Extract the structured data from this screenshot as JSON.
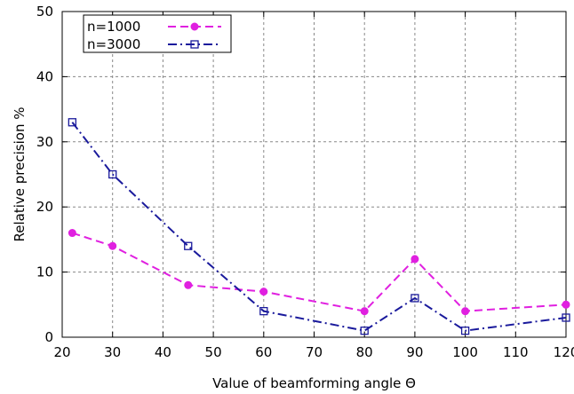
{
  "chart_data": {
    "type": "line",
    "title": "",
    "xlabel": "Value of beamforming angle Θ",
    "ylabel": "Relative precision %",
    "xlim": [
      20,
      120
    ],
    "ylim": [
      0,
      50
    ],
    "xticks": [
      20,
      30,
      40,
      50,
      60,
      70,
      80,
      90,
      100,
      110,
      120
    ],
    "yticks": [
      0,
      10,
      20,
      30,
      40,
      50
    ],
    "grid": true,
    "legend_position": "top-left",
    "series": [
      {
        "name": "n=1000",
        "color": "#e020e0",
        "marker": "filled-circle",
        "line_style": "dashed",
        "x": [
          22,
          30,
          45,
          60,
          80,
          90,
          100,
          120
        ],
        "y": [
          16,
          14,
          8,
          7,
          4,
          12,
          4,
          5
        ]
      },
      {
        "name": "n=3000",
        "color": "#1a1a9c",
        "marker": "open-square",
        "line_style": "dash-dot",
        "x": [
          22,
          30,
          45,
          60,
          80,
          90,
          100,
          120
        ],
        "y": [
          33,
          25,
          14,
          4,
          1,
          6,
          1,
          3
        ]
      }
    ]
  }
}
